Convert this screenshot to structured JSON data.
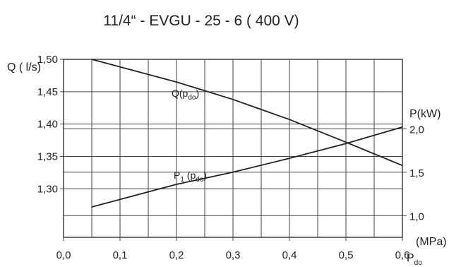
{
  "chart_data": {
    "type": "line",
    "title": "11/4“ - EVGU - 25 - 6 ( 400 V)",
    "xlabel_unit": "(MPa)",
    "xlabel_main": "P",
    "xlabel_sub": "do",
    "ylabel_left": "Q ( l/s)",
    "ylabel_right": "P(kW)",
    "xlim": [
      0.0,
      0.6
    ],
    "ylim_left": [
      1.225,
      1.5
    ],
    "ylim_right": [
      0.75,
      2.8
    ],
    "grid": true,
    "x_ticks": [
      {
        "v": 0.0,
        "label": "0,0"
      },
      {
        "v": 0.1,
        "label": "0,1"
      },
      {
        "v": 0.2,
        "label": "0,2"
      },
      {
        "v": 0.3,
        "label": "0,3"
      },
      {
        "v": 0.4,
        "label": "0,4"
      },
      {
        "v": 0.5,
        "label": "0,5"
      },
      {
        "v": 0.6,
        "label": "0,6"
      }
    ],
    "y_left_ticks": [
      {
        "v": 1.5,
        "label": "1,50"
      },
      {
        "v": 1.45,
        "label": "1,45"
      },
      {
        "v": 1.4,
        "label": "1,40"
      },
      {
        "v": 1.35,
        "label": "1,35"
      },
      {
        "v": 1.3,
        "label": "1,30"
      }
    ],
    "y_right_ticks": [
      {
        "v": 2.0,
        "label": "2,0"
      },
      {
        "v": 1.5,
        "label": "1,5"
      },
      {
        "v": 1.0,
        "label": "1,0"
      }
    ],
    "series": [
      {
        "name": "Q(p",
        "name_sub": "do",
        "name_suffix": ")",
        "axis": "left",
        "x": [
          0.05,
          0.2,
          0.3,
          0.4,
          0.5,
          0.6
        ],
        "y": [
          1.5,
          1.465,
          1.438,
          1.407,
          1.372,
          1.336
        ]
      },
      {
        "name": "P",
        "name_sub1": "1",
        "name_mid": " (p",
        "name_sub2": "do",
        "name_suffix": ")",
        "axis": "right",
        "x": [
          0.05,
          0.2,
          0.3,
          0.4,
          0.5,
          0.6
        ],
        "y": [
          1.1,
          1.36,
          1.5,
          1.66,
          1.83,
          2.02
        ]
      }
    ]
  }
}
